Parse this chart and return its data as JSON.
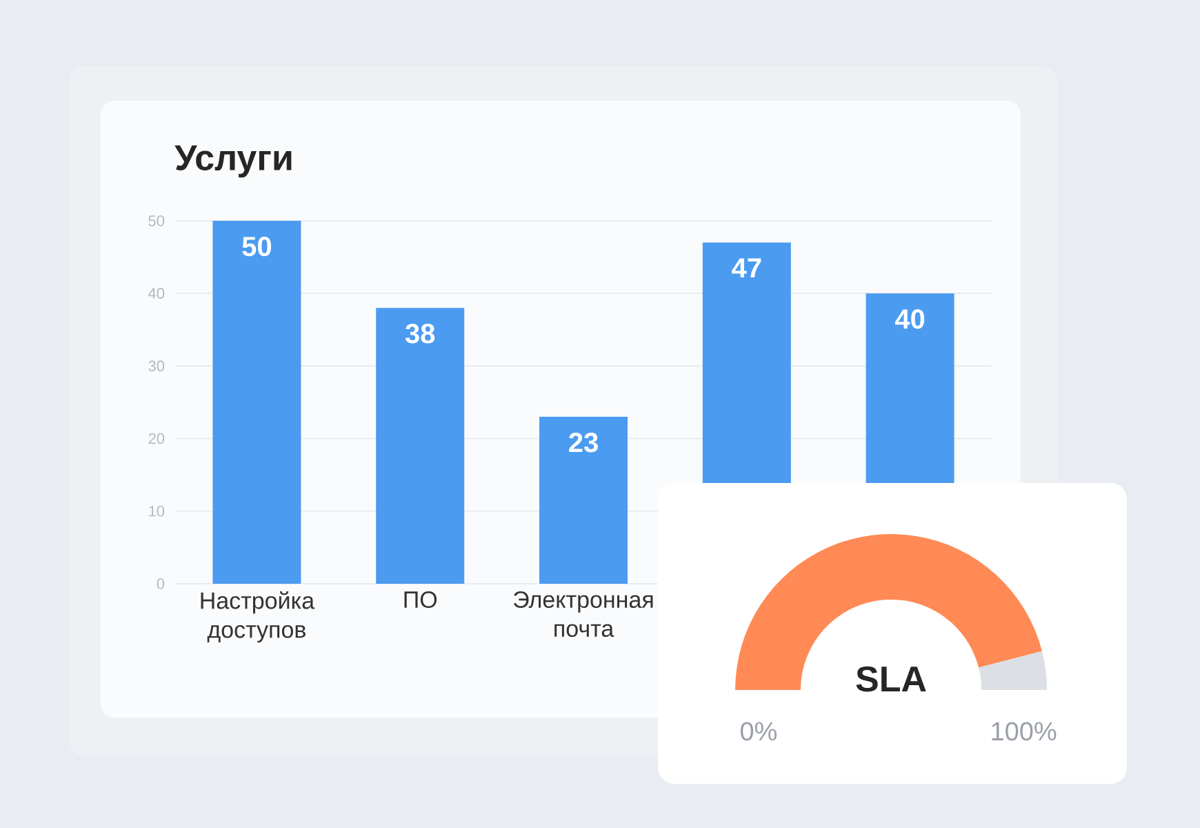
{
  "chart_data": [
    {
      "type": "bar",
      "title": "Услуги",
      "categories": [
        "Настройка доступов",
        "ПО",
        "Электронная почта",
        null,
        null
      ],
      "values": [
        50,
        38,
        23,
        47,
        40
      ],
      "color": "#4b9bf0",
      "ylim": [
        0,
        50
      ],
      "yticks": [
        0,
        10,
        20,
        30,
        40,
        50
      ],
      "grid": "y",
      "data_labels": true
    },
    {
      "type": "donut",
      "title": "SLA",
      "categories": [
        null,
        null
      ],
      "values": [
        92,
        8
      ],
      "colors": [
        "#ff8a55",
        "#dcdfe4"
      ],
      "annotations": [
        "0%",
        "100%"
      ]
    }
  ]
}
